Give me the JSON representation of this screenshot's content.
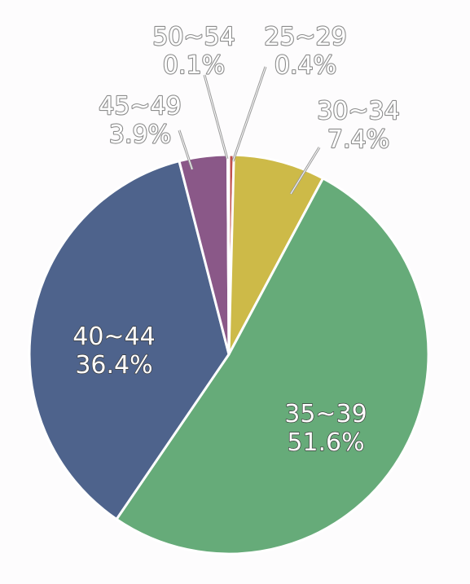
{
  "chart_data": {
    "type": "pie",
    "title": "",
    "start_angle_deg": 0,
    "direction": "clockwise",
    "legend": "none",
    "slices": [
      {
        "label": "25~29",
        "value": 0.4,
        "value_text": "0.4%",
        "color": "#c0504d"
      },
      {
        "label": "30~34",
        "value": 7.4,
        "value_text": "7.4%",
        "color": "#cdba48"
      },
      {
        "label": "35~39",
        "value": 51.6,
        "value_text": "51.6%",
        "color": "#66ab79"
      },
      {
        "label": "40~44",
        "value": 36.4,
        "value_text": "36.4%",
        "color": "#4e638c"
      },
      {
        "label": "45~49",
        "value": 3.9,
        "value_text": "3.9%",
        "color": "#8a5888"
      },
      {
        "label": "50~54",
        "value": 0.1,
        "value_text": "0.1%",
        "color": "#8e8e8e"
      }
    ]
  }
}
